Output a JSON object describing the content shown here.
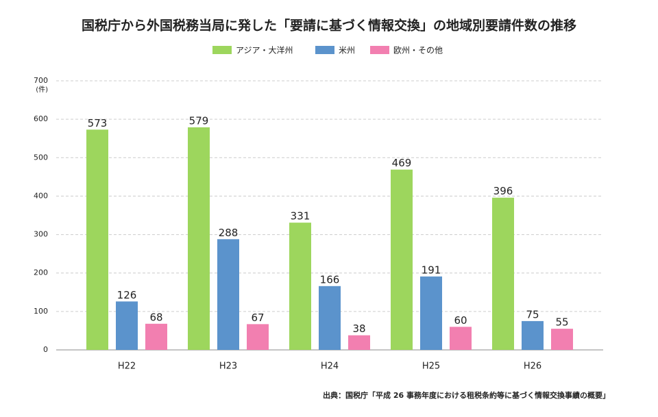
{
  "chart_data": {
    "type": "bar",
    "title": "国税庁から外国税務当局に発した「要請に基づく情報交換」の地域別要請件数の推移",
    "y_unit": "(件)",
    "categories": [
      "H22",
      "H23",
      "H24",
      "H25",
      "H26"
    ],
    "series": [
      {
        "name": "アジア・大洋州",
        "color": "#9dd65d",
        "values": [
          573,
          579,
          331,
          469,
          396
        ]
      },
      {
        "name": "米州",
        "color": "#5b93cc",
        "values": [
          126,
          288,
          166,
          191,
          75
        ]
      },
      {
        "name": "欧州・その他",
        "color": "#f27fb0",
        "values": [
          68,
          67,
          38,
          60,
          55
        ]
      }
    ],
    "ylim": [
      0,
      700
    ],
    "yticks": [
      0,
      100,
      200,
      300,
      400,
      500,
      600,
      700
    ],
    "grid": true,
    "legend": "top",
    "source": "出典：国税庁「平成 26 事務年度における租税条約等に基づく情報交換事績の概要」"
  }
}
